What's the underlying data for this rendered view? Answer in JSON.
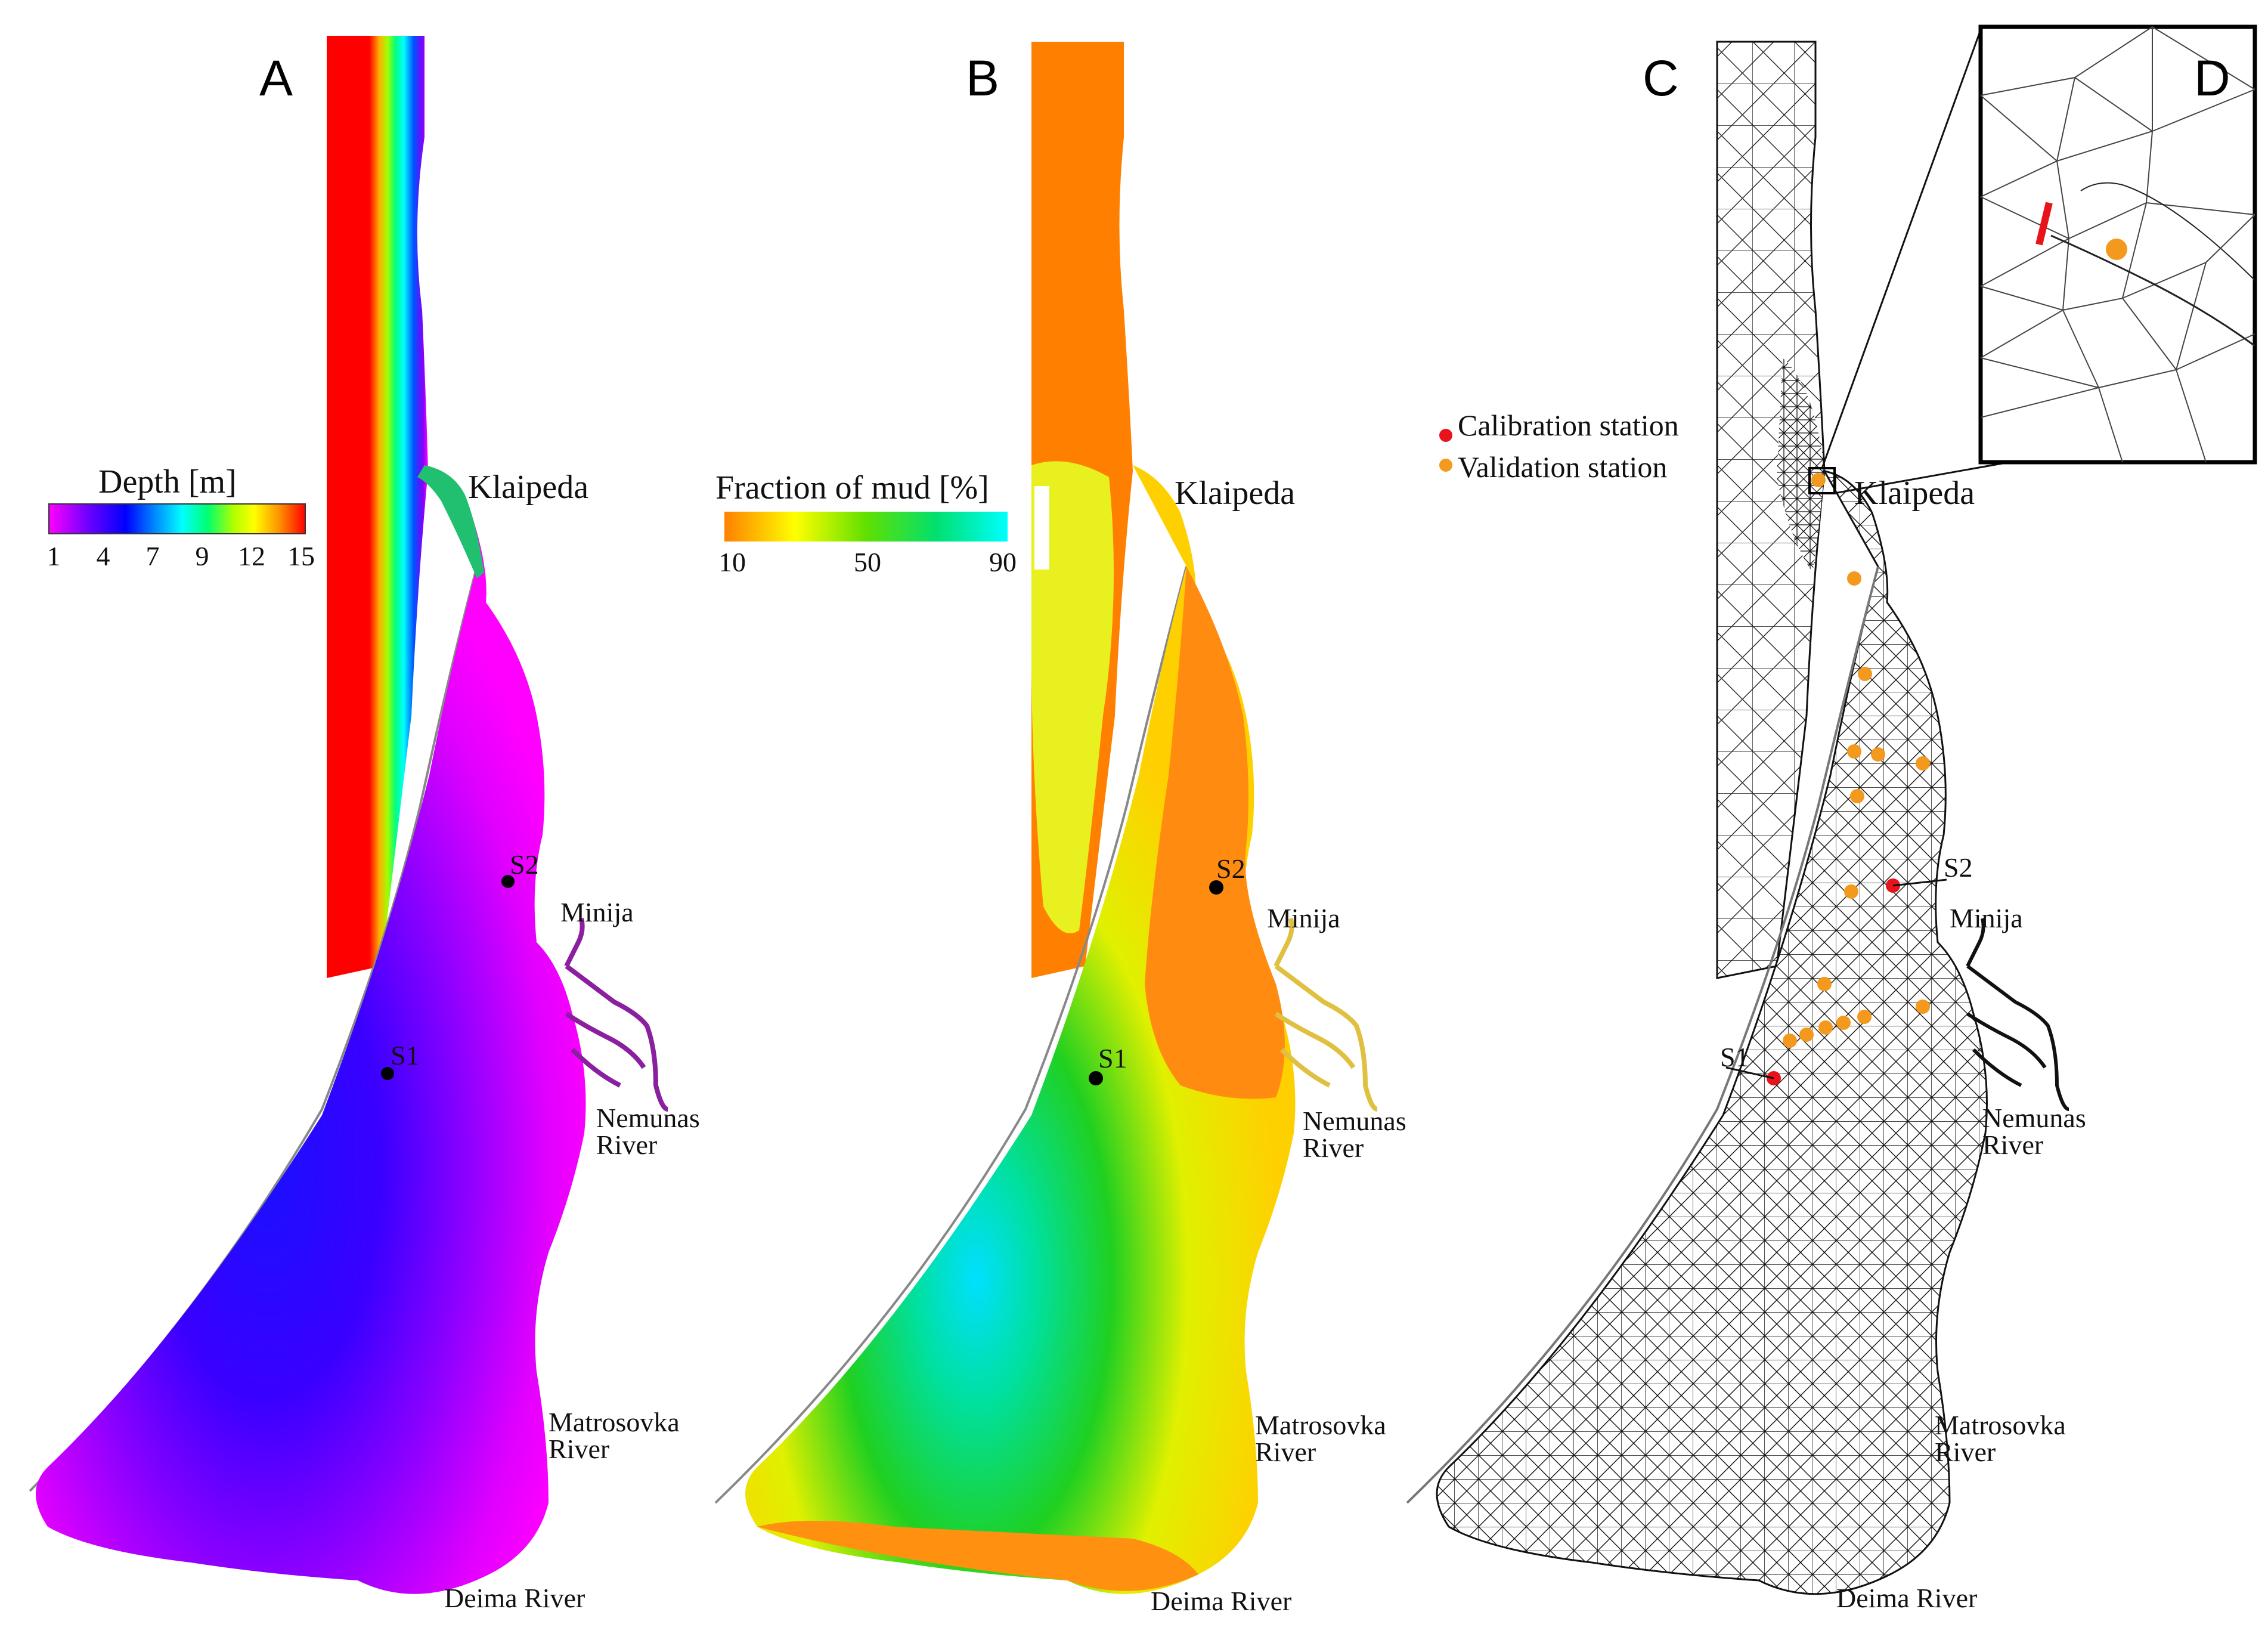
{
  "panels": {
    "a": {
      "letter": "A",
      "legend": {
        "title": "Depth [m]",
        "ticks": [
          "1",
          "4",
          "7",
          "9",
          "12",
          "15"
        ]
      }
    },
    "b": {
      "letter": "B",
      "legend": {
        "title": "Fraction of mud [%]",
        "ticks": [
          "10",
          "50",
          "90"
        ]
      }
    },
    "c": {
      "letter": "C",
      "legend": {
        "calibration_label": "Calibration station",
        "validation_label": "Validation station"
      }
    },
    "d": {
      "letter": "D"
    }
  },
  "places": {
    "klaipeda": "Klaipeda",
    "minija": "Minija",
    "nemunas_1": "Nemunas",
    "nemunas_2": "River",
    "matrosovka_1": "Matrosovka",
    "matrosovka_2": "River",
    "deima": "Deima River"
  },
  "stations": {
    "s1": "S1",
    "s2": "S2"
  },
  "colors": {
    "calibration": "#e8141b",
    "validation": "#f39a1e",
    "depth_scale": [
      "#ff00ff",
      "#7000ff",
      "#0000ff",
      "#0080ff",
      "#00ffff",
      "#00ff60",
      "#a0ff00",
      "#ffff00",
      "#ff9000",
      "#ff0000"
    ],
    "mud_scale": [
      "#ff8000",
      "#ffff00",
      "#a0f000",
      "#00d000",
      "#00ffff"
    ]
  }
}
